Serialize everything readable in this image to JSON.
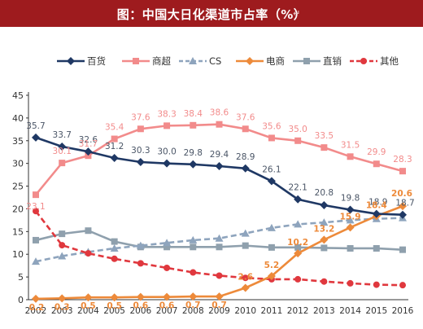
{
  "header": {
    "title": "图：中国大日化渠道市占率（%）",
    "paragraph_mark": "↵"
  },
  "colors": {
    "title_bg": "#9e1b1e",
    "百货": "#1f3864",
    "商超": "#f28b8b",
    "CS": "#8ea4bd",
    "电商": "#ed8a3a",
    "直销": "#8fa0ad",
    "其他": "#e0383e"
  },
  "chart_data": {
    "type": "line",
    "title": "中国大日化渠道市占率（%）",
    "categories": [
      "2002",
      "2003",
      "2004",
      "2005",
      "2006",
      "2007",
      "2008",
      "2009",
      "2010",
      "2011",
      "2012",
      "2013",
      "2014",
      "2015",
      "2016"
    ],
    "yticks": [
      0,
      5,
      10,
      15,
      20,
      25,
      30,
      35,
      40,
      45
    ],
    "ylim": [
      0,
      45
    ],
    "grid": false,
    "legend_position": "top",
    "series": [
      {
        "name": "百货",
        "style": "solid-diamond",
        "color": "#1f3864",
        "values": [
          35.7,
          33.7,
          32.6,
          31.2,
          30.3,
          30.0,
          29.8,
          29.4,
          28.9,
          26.1,
          22.1,
          20.8,
          19.8,
          18.9,
          18.7
        ],
        "labels": [
          "35.7",
          "33.7",
          "32.6",
          "31.2",
          "30.3",
          "30.0",
          "29.8",
          "29.4",
          "28.9",
          "26.1",
          "22.1",
          "20.8",
          "19.8",
          "18.9",
          "18.7"
        ]
      },
      {
        "name": "商超",
        "style": "solid-square",
        "color": "#f28b8b",
        "values": [
          23.1,
          30.1,
          31.7,
          35.4,
          37.6,
          38.3,
          38.4,
          38.6,
          37.6,
          35.6,
          35.0,
          33.5,
          31.5,
          29.9,
          28.3
        ],
        "labels": [
          "23.1",
          "30.1",
          "31.7",
          "35.4",
          "37.6",
          "38.3",
          "38.4",
          "38.6",
          "37.6",
          "35.6",
          "35.0",
          "33.5",
          "31.5",
          "29.9",
          "28.3"
        ]
      },
      {
        "name": "CS",
        "style": "dashed-triangle",
        "color": "#8ea4bd",
        "values": [
          8.4,
          9.6,
          10.5,
          11.3,
          11.9,
          12.5,
          13.1,
          13.5,
          14.6,
          15.8,
          16.6,
          17.0,
          17.5,
          17.8,
          18.0
        ]
      },
      {
        "name": "电商",
        "style": "solid-diamond",
        "color": "#ed8a3a",
        "values": [
          0.2,
          0.3,
          0.5,
          0.5,
          0.6,
          0.6,
          0.7,
          0.7,
          2.6,
          5.2,
          10.2,
          13.2,
          15.9,
          18.4,
          20.6
        ],
        "labels": [
          "0.2",
          "0.3",
          "0.5",
          "0.5",
          "0.6",
          "0.6",
          "0.7",
          "0.7",
          "2.6",
          "5.2",
          "10.2",
          "13.2",
          "15.9",
          "18.4",
          "20.6"
        ]
      },
      {
        "name": "直销",
        "style": "solid-square",
        "color": "#8fa0ad",
        "values": [
          13.1,
          14.5,
          15.2,
          12.8,
          11.6,
          11.6,
          11.6,
          11.6,
          11.9,
          11.5,
          11.5,
          11.4,
          11.3,
          11.3,
          11.0
        ]
      },
      {
        "name": "其他",
        "style": "dashed-circle",
        "color": "#e0383e",
        "values": [
          19.5,
          12.0,
          10.2,
          9.0,
          8.0,
          7.0,
          6.0,
          5.3,
          4.8,
          4.5,
          4.5,
          4.0,
          3.6,
          3.3,
          3.2
        ]
      }
    ]
  }
}
